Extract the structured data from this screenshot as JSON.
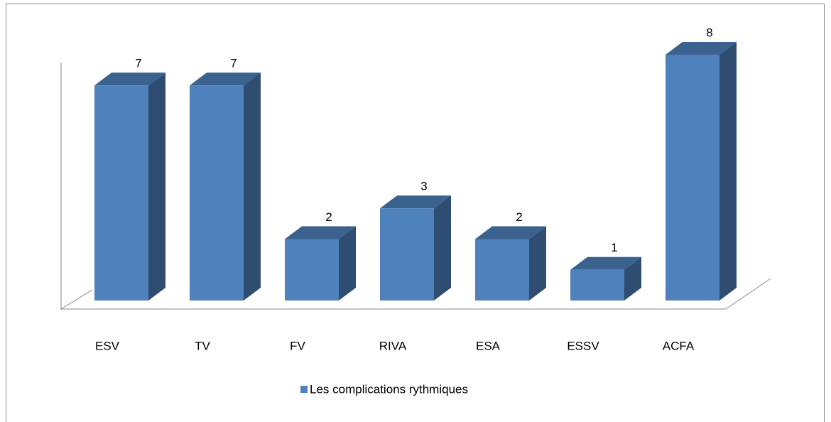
{
  "chart_data": {
    "type": "bar3d",
    "categories": [
      "ESV",
      "TV",
      "FV",
      "RIVA",
      "ESA",
      "ESSV",
      "ACFA"
    ],
    "series": [
      {
        "name": "Les complications rythmiques",
        "color": "#4f81bd",
        "values": [
          7,
          7,
          2,
          3,
          2,
          1,
          8
        ]
      }
    ],
    "ylim": [
      0,
      8
    ],
    "legend": "bottom"
  }
}
